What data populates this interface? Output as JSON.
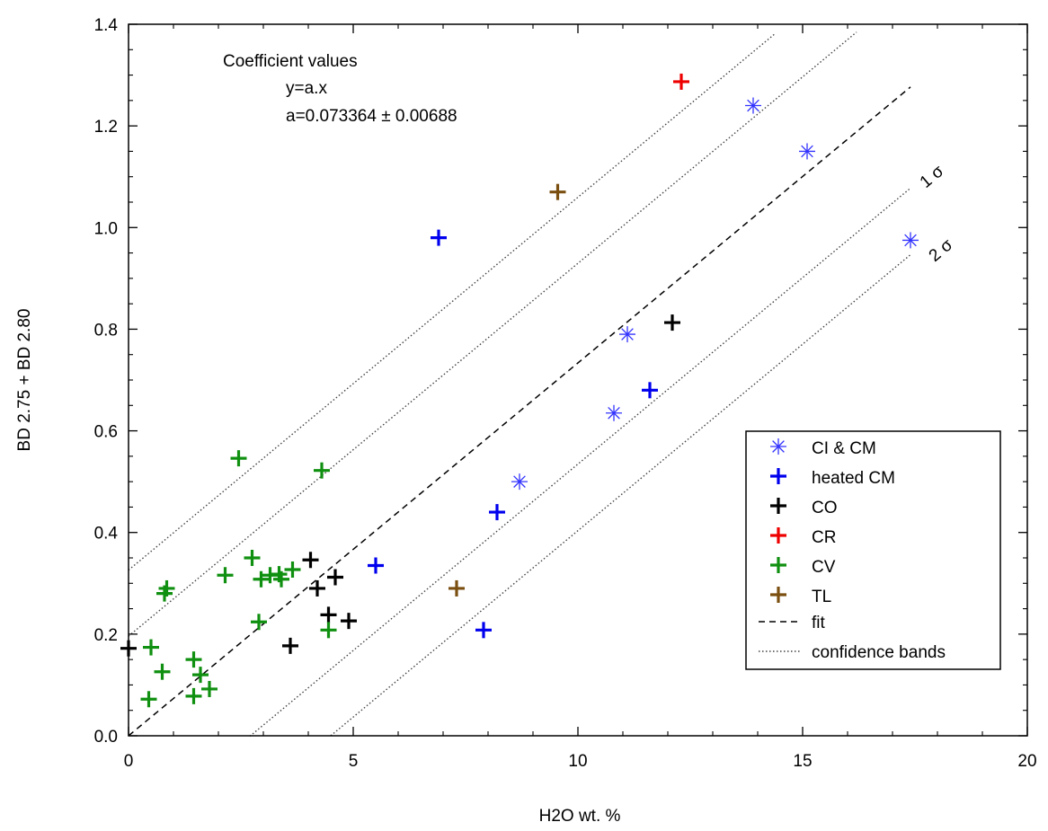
{
  "chart_data": {
    "type": "scatter",
    "xlabel": "H2O wt. %",
    "ylabel": "BD 2.75 + BD 2.80",
    "xlim": [
      0,
      20
    ],
    "ylim": [
      0,
      1.4
    ],
    "x_ticks": [
      0,
      5,
      10,
      15,
      20
    ],
    "x_tick_labels": [
      "0",
      "5",
      "10",
      "15",
      "20"
    ],
    "y_ticks": [
      0,
      0.2,
      0.4,
      0.6,
      0.8,
      1.0,
      1.2,
      1.4
    ],
    "y_tick_labels": [
      "0.0",
      "0.2",
      "0.4",
      "0.6",
      "0.8",
      "1.0",
      "1.2",
      "1.4"
    ],
    "grid": false,
    "legend_position": "bottom-right",
    "annotation": {
      "heading": "Coefficient values",
      "equation": "y=a.x",
      "coefficient": "a=0.073364 ± 0.00688"
    },
    "band_labels": [
      "1 σ",
      "2 σ"
    ],
    "fit": {
      "name": "fit",
      "slope": 0.073364,
      "x_range": [
        0,
        17.4
      ]
    },
    "confidence_bands": {
      "name": "confidence bands",
      "lines": [
        {
          "intercept": 0.326,
          "x_range": [
            0,
            14.4
          ]
        },
        {
          "intercept": 0.196,
          "x_range": [
            0,
            16.2
          ]
        },
        {
          "intercept": -0.199,
          "x_range": [
            2.7,
            17.4
          ]
        },
        {
          "intercept": -0.33,
          "x_range": [
            4.5,
            17.4
          ]
        }
      ]
    },
    "series": [
      {
        "name": "CI & CM",
        "marker": "asterisk",
        "color": "#3333ff",
        "points": [
          [
            8.7,
            0.5
          ],
          [
            10.8,
            0.635
          ],
          [
            11.1,
            0.79
          ],
          [
            13.9,
            1.24
          ],
          [
            15.1,
            1.15
          ],
          [
            17.4,
            0.975
          ]
        ]
      },
      {
        "name": "heated CM",
        "marker": "plus",
        "color": "#0000ee",
        "points": [
          [
            5.5,
            0.335
          ],
          [
            6.9,
            0.98
          ],
          [
            7.9,
            0.208
          ],
          [
            8.2,
            0.44
          ],
          [
            11.6,
            0.68
          ]
        ]
      },
      {
        "name": "CO",
        "marker": "plus",
        "color": "#000000",
        "points": [
          [
            0.0,
            0.172
          ],
          [
            3.6,
            0.177
          ],
          [
            4.05,
            0.346
          ],
          [
            4.2,
            0.29
          ],
          [
            4.45,
            0.238
          ],
          [
            4.6,
            0.312
          ],
          [
            4.9,
            0.226
          ],
          [
            12.1,
            0.813
          ]
        ]
      },
      {
        "name": "CR",
        "marker": "plus",
        "color": "#ee0000",
        "points": [
          [
            12.3,
            1.287
          ]
        ]
      },
      {
        "name": "CV",
        "marker": "plus",
        "color": "#109010",
        "points": [
          [
            0.45,
            0.072
          ],
          [
            0.5,
            0.174
          ],
          [
            0.75,
            0.126
          ],
          [
            0.8,
            0.28
          ],
          [
            0.85,
            0.29
          ],
          [
            1.45,
            0.15
          ],
          [
            1.45,
            0.078
          ],
          [
            1.6,
            0.12
          ],
          [
            1.8,
            0.092
          ],
          [
            2.15,
            0.316
          ],
          [
            2.45,
            0.546
          ],
          [
            2.75,
            0.35
          ],
          [
            2.9,
            0.224
          ],
          [
            2.95,
            0.308
          ],
          [
            3.15,
            0.316
          ],
          [
            3.35,
            0.318
          ],
          [
            3.4,
            0.308
          ],
          [
            3.65,
            0.327
          ],
          [
            4.3,
            0.522
          ],
          [
            4.45,
            0.208
          ]
        ]
      },
      {
        "name": "TL",
        "marker": "plus",
        "color": "#7a4f10",
        "points": [
          [
            7.3,
            0.29
          ],
          [
            9.55,
            1.07
          ]
        ]
      }
    ]
  }
}
